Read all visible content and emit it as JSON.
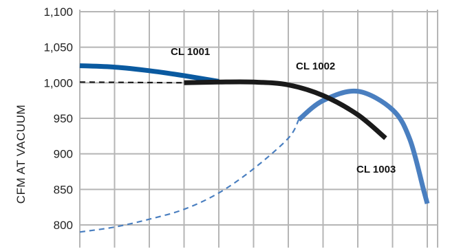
{
  "chart_data": {
    "type": "line",
    "ylabel": "CFM AT VACUUM",
    "xlabel": "",
    "title": "",
    "ylim": [
      790,
      1100
    ],
    "xlim": [
      0,
      10
    ],
    "y_ticks": [
      {
        "value": 800,
        "label": "800"
      },
      {
        "value": 850,
        "label": "850"
      },
      {
        "value": 900,
        "label": "900"
      },
      {
        "value": 950,
        "label": "950"
      },
      {
        "value": 1000,
        "label": "1,000"
      },
      {
        "value": 1050,
        "label": "1,050"
      },
      {
        "value": 1100,
        "label": "1,100"
      }
    ],
    "x_gridlines": [
      1,
      2,
      3,
      4,
      5,
      6,
      7,
      8,
      9,
      10
    ],
    "grid": true,
    "series": [
      {
        "name": "CL 1001",
        "color": "#0a5aa0",
        "solid": [
          [
            0,
            1024
          ],
          [
            1,
            1022
          ],
          [
            2,
            1017
          ],
          [
            3,
            1010
          ],
          [
            4,
            1002
          ]
        ],
        "dashed": []
      },
      {
        "name": "CL 1002",
        "color": "#1a1a1a",
        "dashed": [
          [
            0,
            1001
          ],
          [
            3,
            1000
          ]
        ],
        "solid": [
          [
            3,
            1000
          ],
          [
            4,
            1001
          ],
          [
            5,
            1001
          ],
          [
            6,
            997
          ],
          [
            7,
            982
          ],
          [
            8,
            955
          ],
          [
            8.8,
            922
          ]
        ]
      },
      {
        "name": "CL 1003",
        "color": "#4a7fc0",
        "dashed": [
          [
            0,
            790
          ],
          [
            1,
            797
          ],
          [
            2,
            808
          ],
          [
            3,
            822
          ],
          [
            4,
            845
          ],
          [
            5,
            879
          ],
          [
            6,
            922
          ],
          [
            6.3,
            948
          ]
        ],
        "solid": [
          [
            6.3,
            948
          ],
          [
            7,
            975
          ],
          [
            8,
            988
          ],
          [
            9,
            962
          ],
          [
            9.5,
            920
          ],
          [
            9.9,
            848
          ],
          [
            10,
            830
          ]
        ]
      }
    ],
    "annotations": [
      {
        "text": "CL 1001",
        "series": "CL 1001"
      },
      {
        "text": "CL 1002",
        "series": "CL 1002"
      },
      {
        "text": "CL 1003",
        "series": "CL 1003"
      }
    ]
  }
}
